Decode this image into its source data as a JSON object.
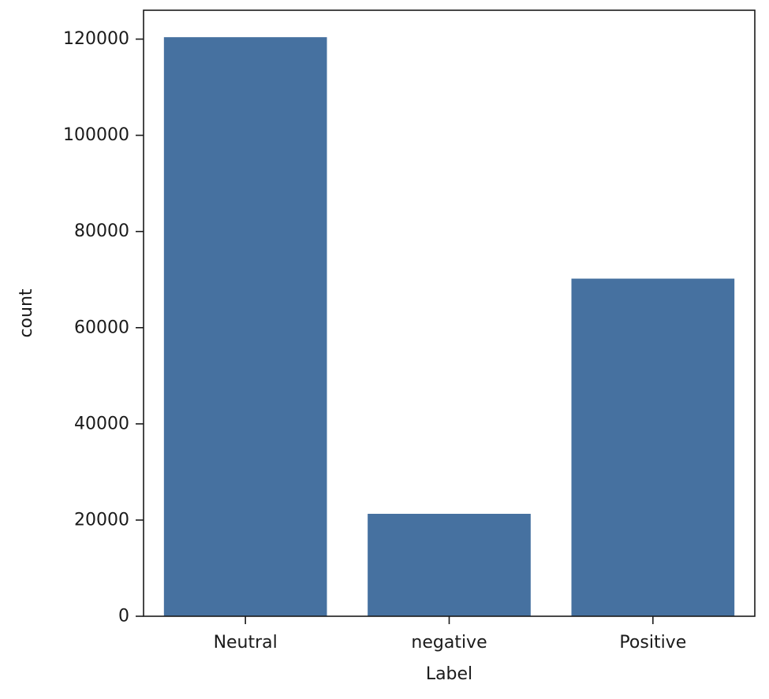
{
  "chart_data": {
    "type": "bar",
    "title": "",
    "xlabel": "Label",
    "ylabel": "count",
    "categories": [
      "Neutral",
      "negative",
      "Positive"
    ],
    "values": [
      120400,
      21300,
      70200
    ],
    "ylim": [
      0,
      126000
    ],
    "yticks": [
      0,
      20000,
      40000,
      60000,
      80000,
      100000,
      120000
    ],
    "ytick_labels": [
      "0",
      "20000",
      "40000",
      "60000",
      "80000",
      "100000",
      "120000"
    ],
    "grid": false,
    "legend": "none",
    "bar_color": "#4671a0"
  }
}
